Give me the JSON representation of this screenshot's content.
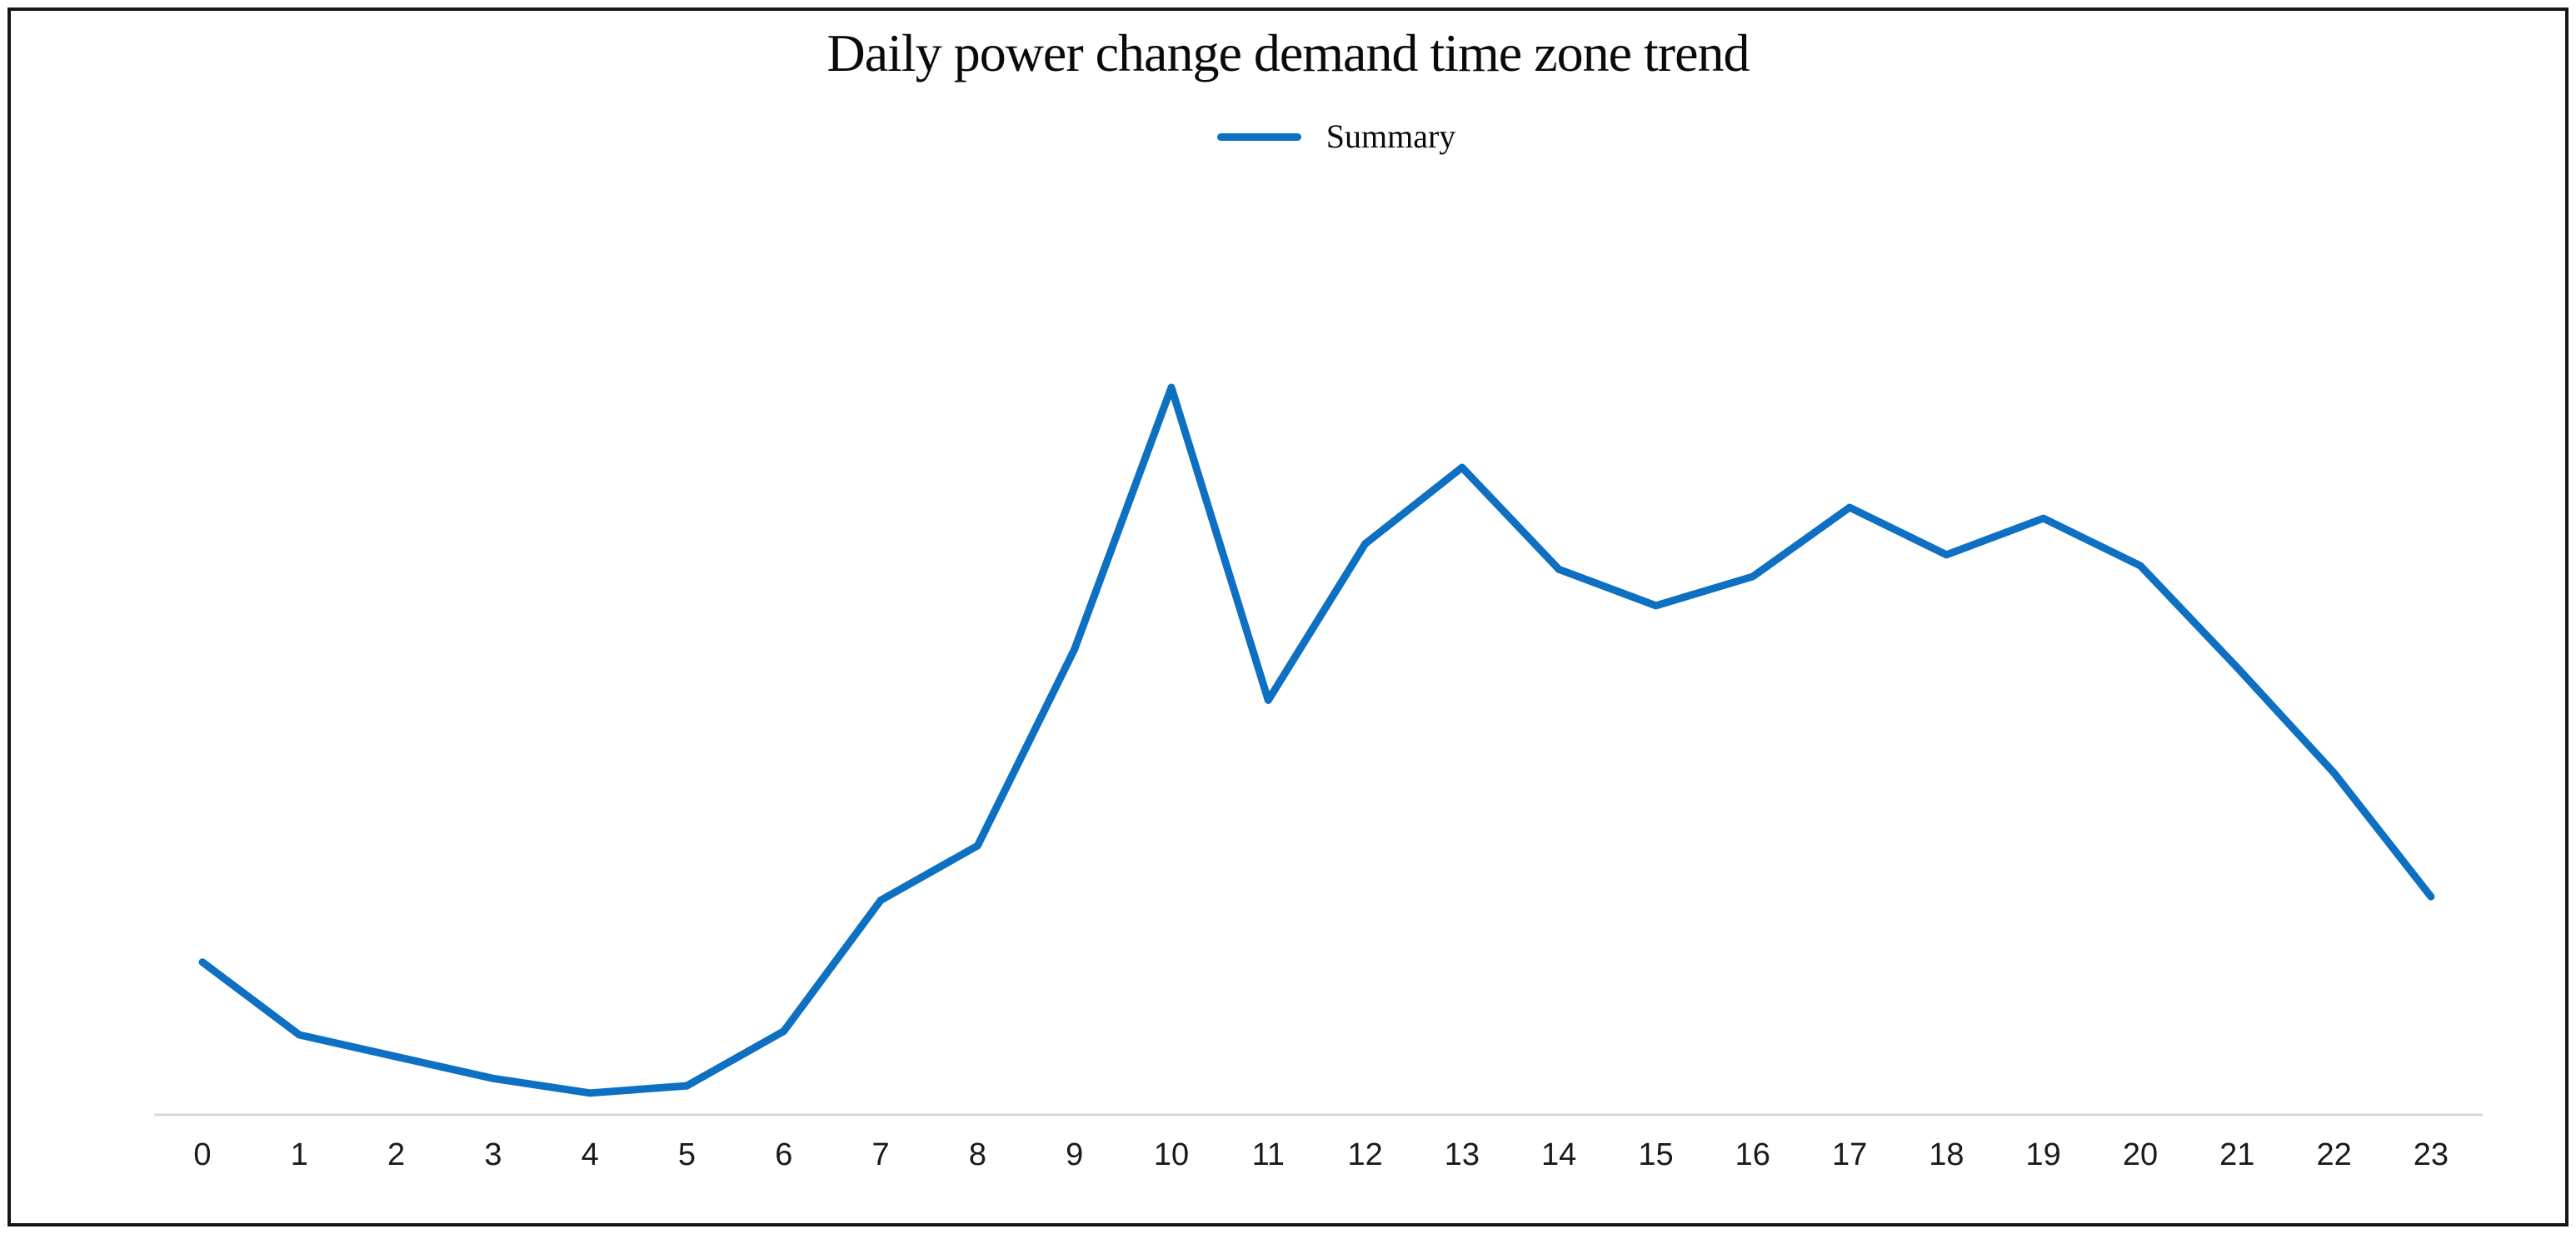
{
  "window": {
    "background_color": "#ffffff",
    "frame_border_color": "#161616"
  },
  "chart_data": {
    "type": "line",
    "title": "Daily power change demand time zone trend",
    "xlabel": "",
    "ylabel": "",
    "x": [
      0,
      1,
      2,
      3,
      4,
      5,
      6,
      7,
      8,
      9,
      10,
      11,
      12,
      13,
      14,
      15,
      16,
      17,
      18,
      19,
      20,
      21,
      22,
      23
    ],
    "series": [
      {
        "name": "Summary",
        "values": [
          21,
          11,
          8,
          5,
          3,
          4,
          11.5,
          29.5,
          37,
          64,
          100,
          57,
          78.5,
          89,
          75,
          70,
          74,
          83.5,
          77,
          82,
          75.5,
          61.5,
          47,
          30
        ]
      }
    ],
    "value_note": "y-axis is unlabeled in the source; values are relative units estimated from pixel heights with the hour-10 peak = 100 and the x-axis line = 0",
    "ylim": [
      0,
      105
    ],
    "grid": false,
    "y_axis_visible": false,
    "x_axis_visible": true,
    "legend_position": "top-center",
    "line_color": "#0d70c2",
    "axis_line_color": "#d9d9d9",
    "text_color": "#0a0a0a",
    "tick_label_color": "#1a1a1a"
  }
}
